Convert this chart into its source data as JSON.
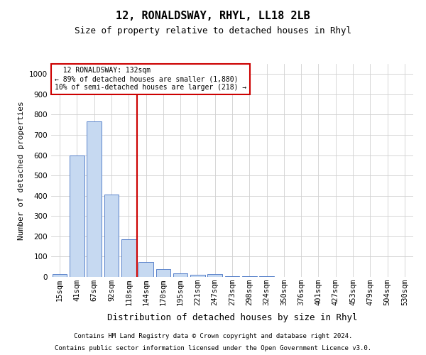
{
  "title": "12, RONALDSWAY, RHYL, LL18 2LB",
  "subtitle": "Size of property relative to detached houses in Rhyl",
  "xlabel": "Distribution of detached houses by size in Rhyl",
  "ylabel": "Number of detached properties",
  "footnote1": "Contains HM Land Registry data © Crown copyright and database right 2024.",
  "footnote2": "Contains public sector information licensed under the Open Government Licence v3.0.",
  "annotation_line1": "  12 RONALDSWAY: 132sqm",
  "annotation_line2": "← 89% of detached houses are smaller (1,880)",
  "annotation_line3": "10% of semi-detached houses are larger (218) →",
  "bin_labels": [
    "15sqm",
    "41sqm",
    "67sqm",
    "92sqm",
    "118sqm",
    "144sqm",
    "170sqm",
    "195sqm",
    "221sqm",
    "247sqm",
    "273sqm",
    "298sqm",
    "324sqm",
    "350sqm",
    "376sqm",
    "401sqm",
    "427sqm",
    "453sqm",
    "479sqm",
    "504sqm",
    "530sqm"
  ],
  "bar_values": [
    15,
    600,
    765,
    405,
    185,
    75,
    38,
    17,
    10,
    13,
    5,
    3,
    2,
    1,
    0,
    0,
    0,
    0,
    0,
    0,
    0
  ],
  "bar_color": "#c6d9f1",
  "bar_edge_color": "#4472c4",
  "vline_pos": 4.5,
  "vline_color": "#cc0000",
  "ylim": [
    0,
    1050
  ],
  "yticks": [
    0,
    100,
    200,
    300,
    400,
    500,
    600,
    700,
    800,
    900,
    1000
  ],
  "grid_color": "#d0d0d0",
  "annotation_box_color": "#cc0000",
  "background_color": "#ffffff",
  "title_fontsize": 11,
  "subtitle_fontsize": 9,
  "ylabel_fontsize": 8,
  "xlabel_fontsize": 9,
  "tick_fontsize": 7.5,
  "footnote_fontsize": 6.5
}
